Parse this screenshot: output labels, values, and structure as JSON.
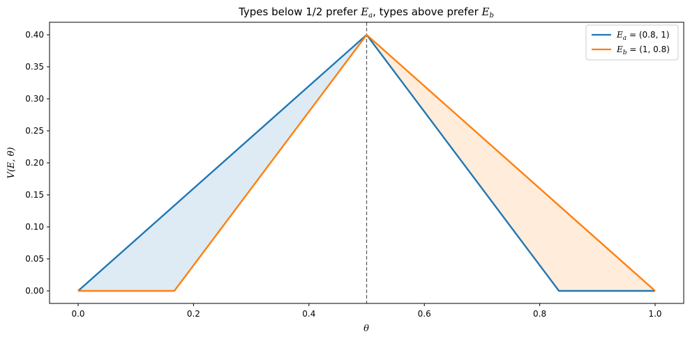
{
  "chart_data": {
    "type": "line",
    "title": "Types below 1/2 prefer E_a, types above prefer E_b",
    "xlabel": "θ",
    "ylabel": "V(E, θ)",
    "xlim": [
      0.0,
      1.0
    ],
    "ylim": [
      0.0,
      0.4
    ],
    "x_ticks": [
      "0.0",
      "0.2",
      "0.4",
      "0.6",
      "0.8",
      "1.0"
    ],
    "y_ticks": [
      "0.00",
      "0.05",
      "0.10",
      "0.15",
      "0.20",
      "0.25",
      "0.30",
      "0.35",
      "0.40"
    ],
    "grid": false,
    "legend_placement": "top-right",
    "reference_line": {
      "x": 0.5,
      "style": "dashed",
      "color": "#555555"
    },
    "series": [
      {
        "name": "E_a = (0.8, 1)",
        "color": "#1f77b4",
        "x": [
          0.0,
          0.5,
          0.8333,
          1.0
        ],
        "y": [
          0.0,
          0.4,
          0.0,
          0.0
        ]
      },
      {
        "name": "E_b = (1, 0.8)",
        "color": "#ff7f0e",
        "x": [
          0.0,
          0.1667,
          0.5,
          1.0
        ],
        "y": [
          0.0,
          0.0,
          0.4,
          0.0
        ]
      }
    ],
    "shaded_regions": [
      {
        "between": [
          "E_a = (0.8, 1)",
          "E_b = (1, 0.8)"
        ],
        "x_range": [
          0.0,
          0.5
        ],
        "color": "#1f77b4",
        "opacity": 0.15
      },
      {
        "between": [
          "E_b = (1, 0.8)",
          "E_a = (0.8, 1)"
        ],
        "x_range": [
          0.5,
          1.0
        ],
        "color": "#ff7f0e",
        "opacity": 0.15
      }
    ]
  }
}
